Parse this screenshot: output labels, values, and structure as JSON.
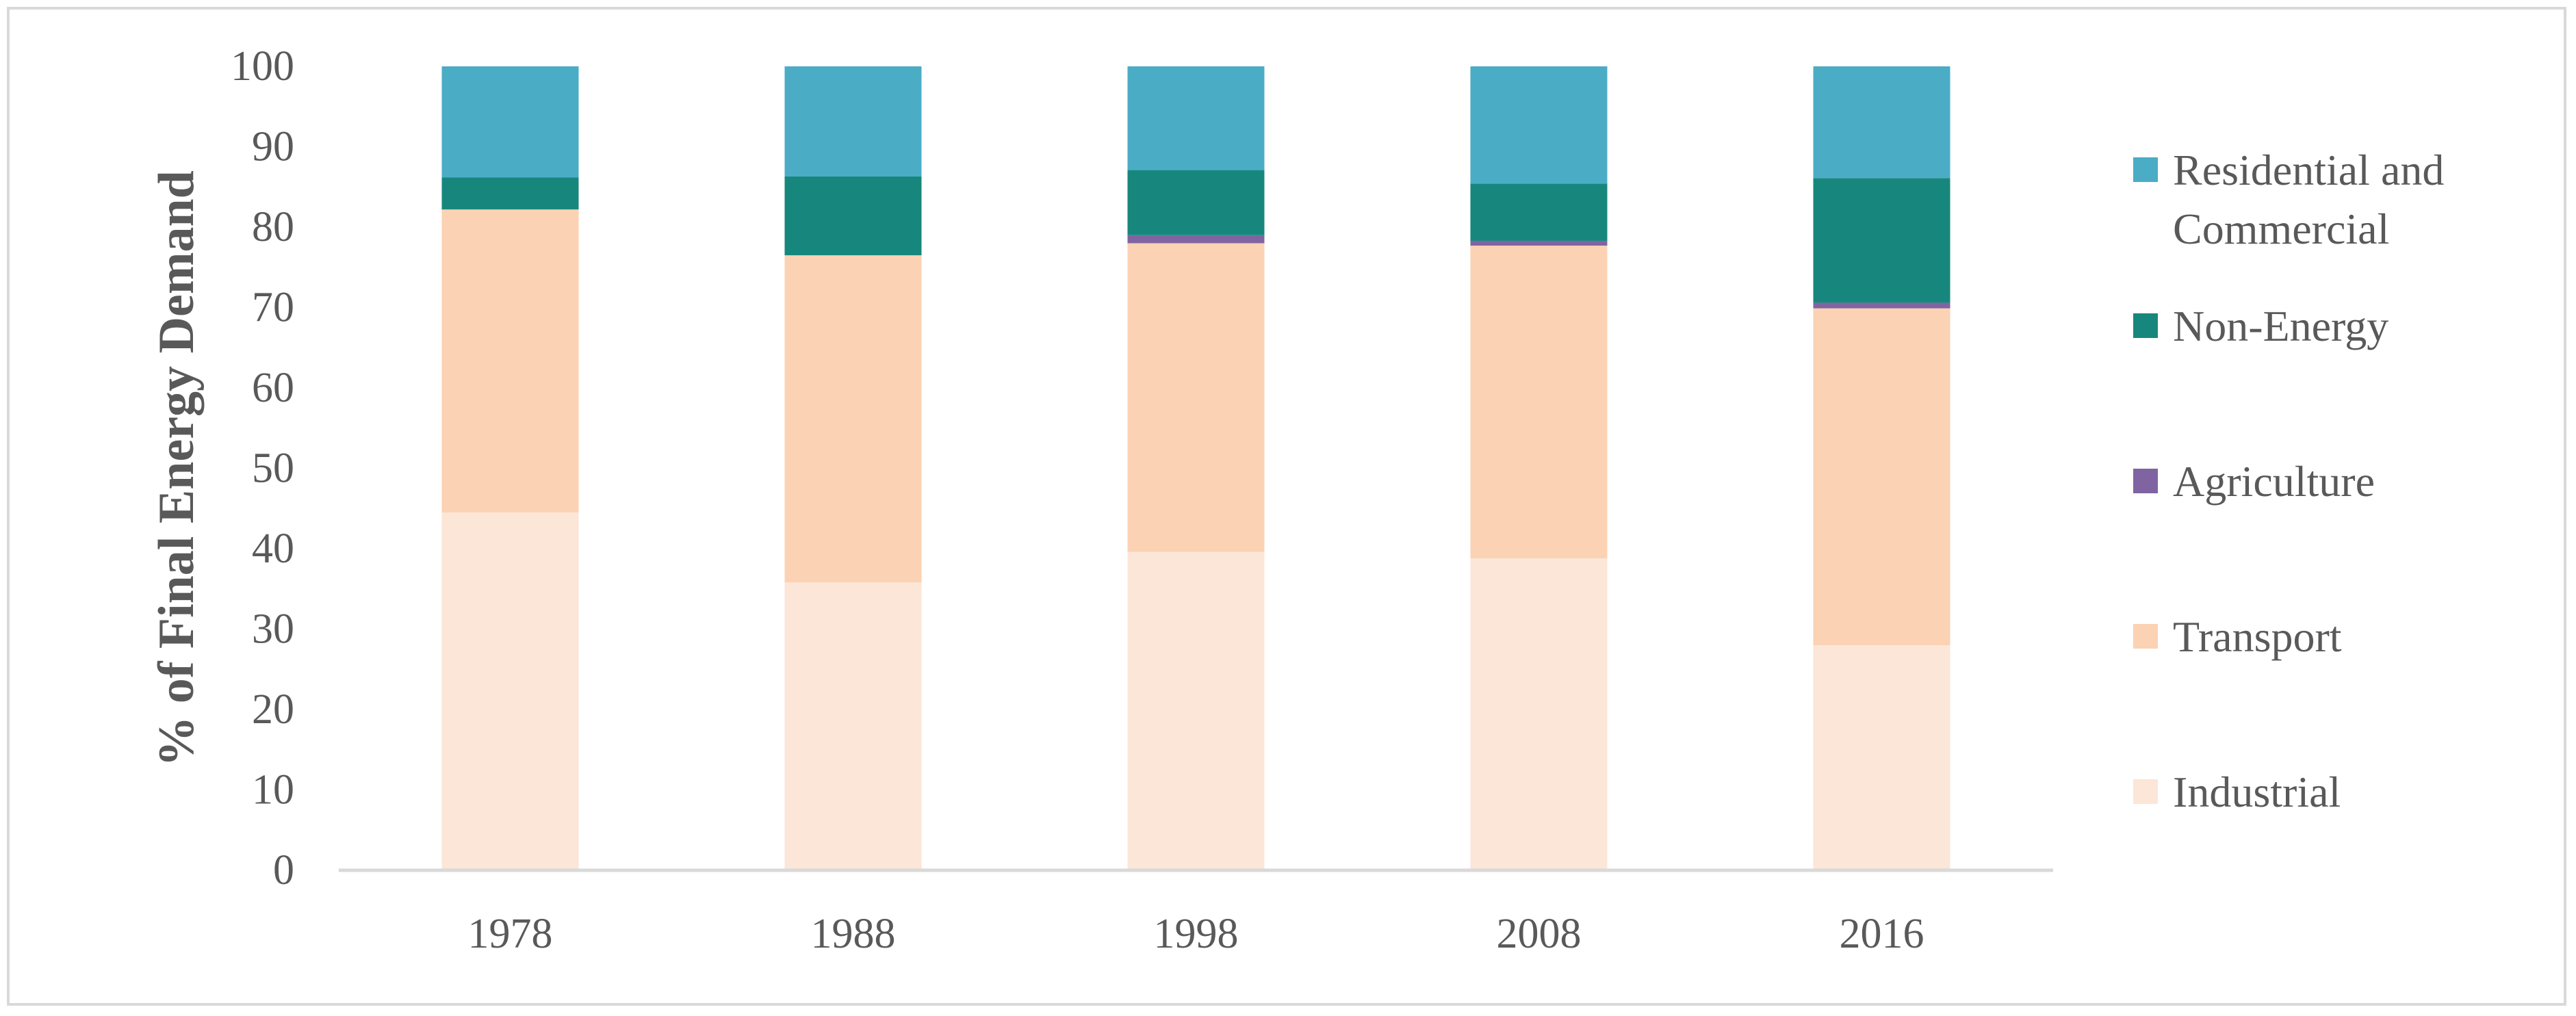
{
  "chart_data": {
    "type": "bar",
    "stacked": true,
    "categories": [
      "1978",
      "1988",
      "1998",
      "2008",
      "2016"
    ],
    "ylabel": "% of Final Energy Demand",
    "xlabel": "",
    "ylim": [
      0,
      100
    ],
    "yticks": [
      "0",
      "10",
      "20",
      "30",
      "40",
      "50",
      "60",
      "70",
      "80",
      "90",
      "100"
    ],
    "grid": false,
    "legend_position": "right",
    "legend": [
      {
        "lines": [
          "Residential and",
          "Commercial"
        ],
        "series": "Residential and Commercial"
      },
      {
        "lines": [
          "Non-Energy"
        ],
        "series": "Non-Energy"
      },
      {
        "lines": [
          "Agriculture"
        ],
        "series": "Agriculture"
      },
      {
        "lines": [
          "Transport"
        ],
        "series": "Transport"
      },
      {
        "lines": [
          "Industrial"
        ],
        "series": "Industrial"
      }
    ],
    "series": [
      {
        "name": "Industrial",
        "color": "#fce6d8",
        "values": [
          44.5,
          35.8,
          39.6,
          38.8,
          28.0
        ]
      },
      {
        "name": "Transport",
        "color": "#fbd2b3",
        "values": [
          37.7,
          40.7,
          38.4,
          38.9,
          41.9
        ]
      },
      {
        "name": "Agriculture",
        "color": "#8064a2",
        "values": [
          0.0,
          0.0,
          1.0,
          0.6,
          0.7
        ]
      },
      {
        "name": "Non-Energy",
        "color": "#17877d",
        "values": [
          4.0,
          9.8,
          8.1,
          7.1,
          15.5
        ]
      },
      {
        "name": "Residential and Commercial",
        "color": "#4bacc6",
        "values": [
          13.8,
          13.7,
          12.9,
          14.6,
          13.9
        ]
      }
    ]
  }
}
